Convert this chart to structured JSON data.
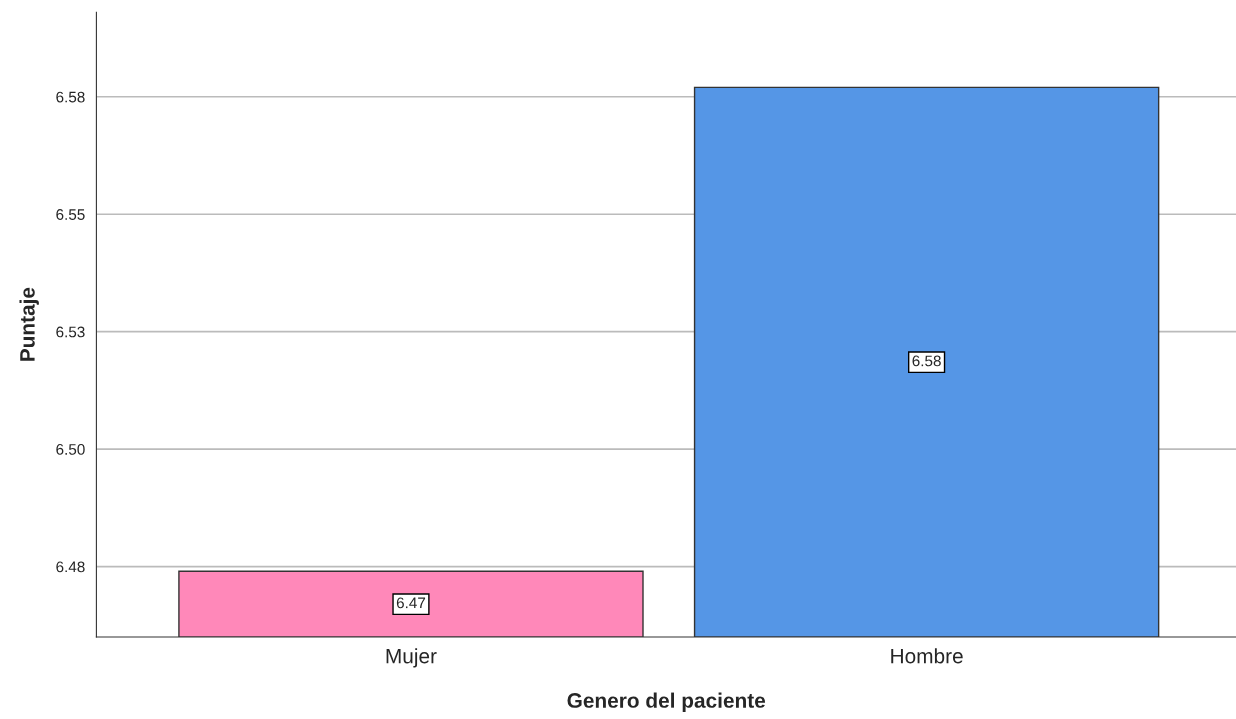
{
  "chart_data": {
    "type": "bar",
    "xlabel": "Genero del paciente",
    "ylabel": "Puntaje",
    "categories": [
      "Mujer",
      "Hombre"
    ],
    "values": [
      6.474,
      6.577
    ],
    "colors": [
      "#ff88b9",
      "#5596e6"
    ],
    "value_labels": [
      "6.47",
      "6.58"
    ],
    "ylim": [
      6.46,
      6.593
    ],
    "yticks": [
      {
        "value": 6.475,
        "label": "6.48"
      },
      {
        "value": 6.5,
        "label": "6.50"
      },
      {
        "value": 6.525,
        "label": "6.53"
      },
      {
        "value": 6.55,
        "label": "6.55"
      },
      {
        "value": 6.575,
        "label": "6.58"
      }
    ],
    "grid": "y",
    "legend": false
  }
}
